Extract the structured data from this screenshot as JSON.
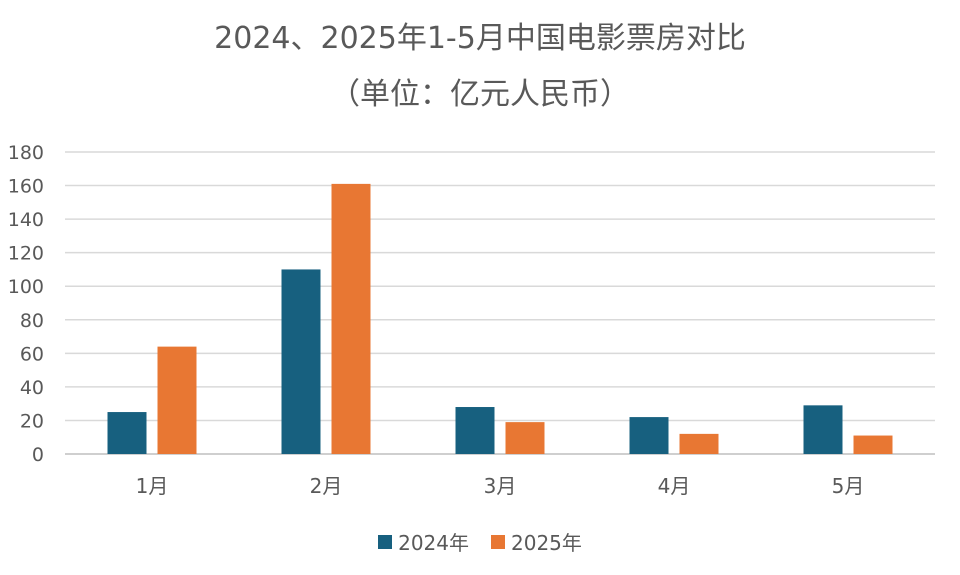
{
  "chart_data": {
    "type": "bar",
    "title": "2024、2025年1-5月中国电影票房对比",
    "subtitle": "（单位：亿元人民币）",
    "categories": [
      "1月",
      "2月",
      "3月",
      "4月",
      "5月"
    ],
    "series": [
      {
        "name": "2024年",
        "color": "#17607f",
        "values": [
          25,
          110,
          28,
          22,
          29
        ]
      },
      {
        "name": "2025年",
        "color": "#e87733",
        "values": [
          64,
          161,
          19,
          12,
          11
        ]
      }
    ],
    "ylim": [
      0,
      180
    ],
    "yticks": [
      0,
      20,
      40,
      60,
      80,
      100,
      120,
      140,
      160,
      180
    ],
    "grid": true,
    "legend": "bottom"
  }
}
